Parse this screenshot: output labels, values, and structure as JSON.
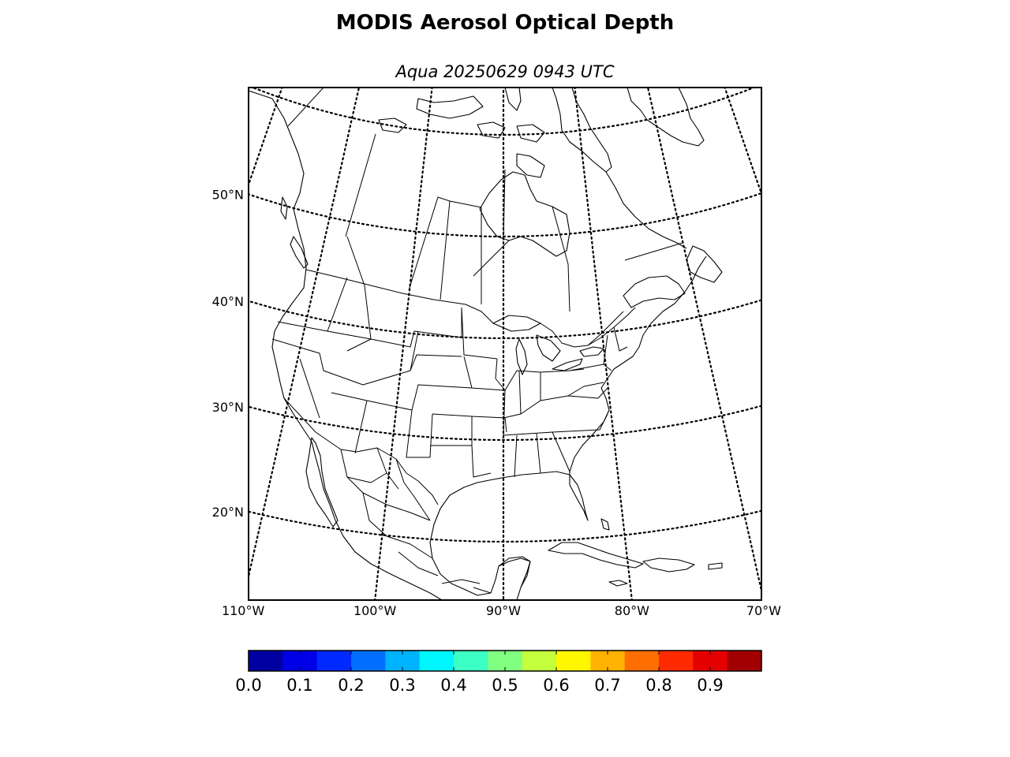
{
  "title": "MODIS Aerosol Optical Depth",
  "subtitle": "Aqua 20250629 0943 UTC",
  "map": {
    "projection": "lambert-conformal",
    "region": "North America",
    "parallels_dotted": true,
    "meridians_dotted": true,
    "boundaries": [
      "coastlines",
      "countries",
      "states-provinces"
    ],
    "lat_labels": [
      {
        "lat": 50,
        "text": "50°N"
      },
      {
        "lat": 40,
        "text": "40°N"
      },
      {
        "lat": 30,
        "text": "30°N"
      },
      {
        "lat": 20,
        "text": "20°N"
      }
    ],
    "lon_labels": [
      {
        "lon": -110,
        "text": "110°W"
      },
      {
        "lon": -100,
        "text": "100°W"
      },
      {
        "lon": -90,
        "text": "90°W"
      },
      {
        "lon": -80,
        "text": "80°W"
      },
      {
        "lon": -70,
        "text": "70°W"
      }
    ]
  },
  "colorbar": {
    "colormap": "jet",
    "min": 0.0,
    "max": 1.0,
    "bins": 15,
    "ticks": [
      0.0,
      0.1,
      0.2,
      0.3,
      0.4,
      0.5,
      0.6,
      0.7,
      0.8,
      0.9
    ],
    "tick_labels": [
      "0.0",
      "0.1",
      "0.2",
      "0.3",
      "0.4",
      "0.5",
      "0.6",
      "0.7",
      "0.8",
      "0.9"
    ]
  },
  "chart_data": {
    "type": "heatmap",
    "title": "MODIS Aerosol Optical Depth",
    "subtitle": "Aqua 20250629 0943 UTC",
    "colorbar_range": [
      0.0,
      1.0
    ],
    "colorbar_ticks": [
      0.0,
      0.1,
      0.2,
      0.3,
      0.4,
      0.5,
      0.6,
      0.7,
      0.8,
      0.9
    ],
    "values": []
  }
}
